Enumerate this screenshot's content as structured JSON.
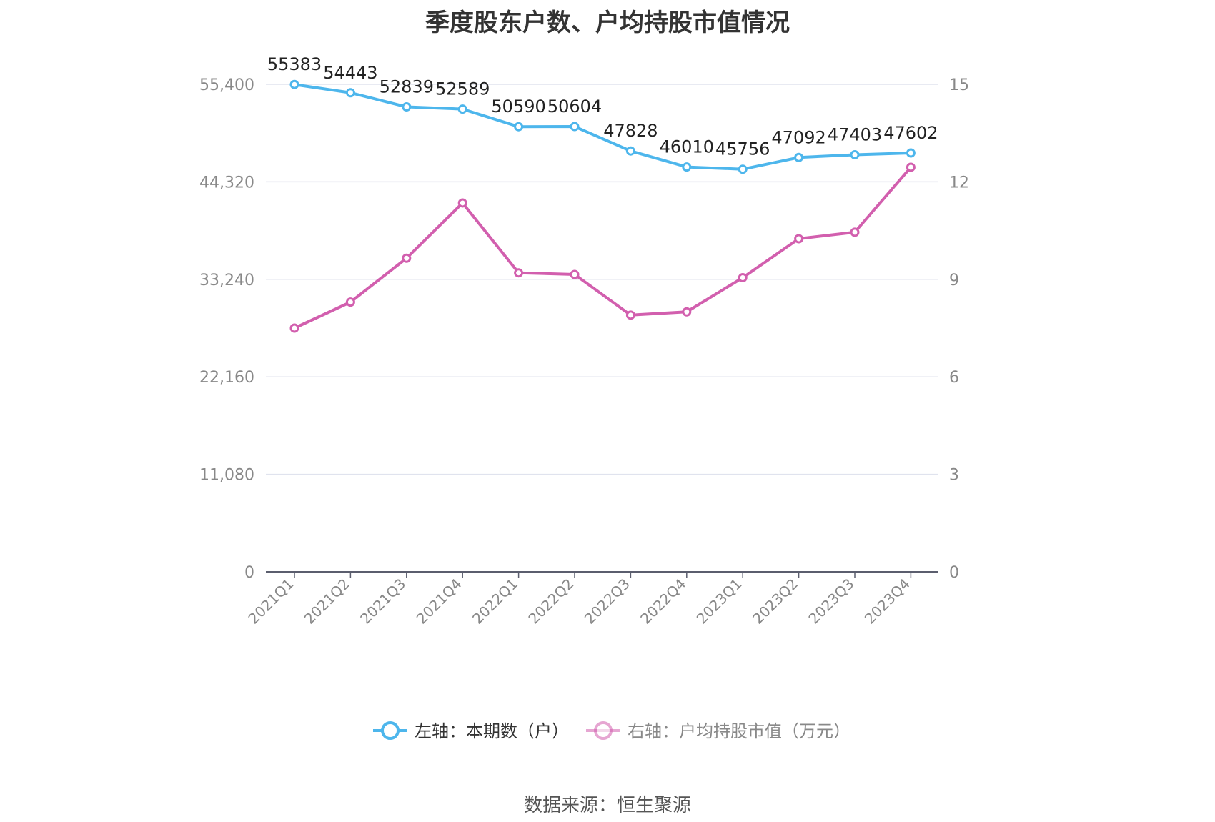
{
  "title": "季度股东户数、户均持股市值情况",
  "source": "数据来源：恒生聚源",
  "colors": {
    "left": "#4db6ec",
    "right": "#d25fae",
    "grid": "#e0e3ee",
    "axis": "#5b5e6e"
  },
  "chart_data": {
    "type": "line",
    "title": "季度股东户数、户均持股市值情况",
    "categories": [
      "2021Q1",
      "2021Q2",
      "2021Q3",
      "2021Q4",
      "2022Q1",
      "2022Q2",
      "2022Q3",
      "2022Q4",
      "2023Q1",
      "2023Q2",
      "2023Q3",
      "2023Q4"
    ],
    "left_axis": {
      "ticks": [
        "0",
        "11,080",
        "22,160",
        "33,240",
        "44,320",
        "55,400"
      ],
      "ylim": [
        0,
        55400
      ]
    },
    "right_axis": {
      "ticks": [
        "0",
        "3",
        "6",
        "9",
        "12",
        "15"
      ],
      "ylim": [
        0,
        15
      ]
    },
    "series": [
      {
        "name": "左轴：本期数（户）",
        "axis": "left",
        "values": [
          55383,
          54443,
          52839,
          52589,
          50590,
          50604,
          47828,
          46010,
          45756,
          47092,
          47403,
          47602
        ],
        "labels": [
          "55383",
          "54443",
          "52839",
          "52589",
          "50590",
          "50604",
          "47828",
          "46010",
          "45756",
          "47092",
          "47403",
          "47602"
        ]
      },
      {
        "name": "右轴：户均持股市值（万元）",
        "axis": "right",
        "values": [
          7.5,
          8.3,
          9.65,
          11.35,
          9.2,
          9.15,
          7.9,
          8.0,
          9.05,
          10.25,
          10.45,
          12.45
        ]
      }
    ],
    "grid": true,
    "legend": "bottom-center"
  }
}
